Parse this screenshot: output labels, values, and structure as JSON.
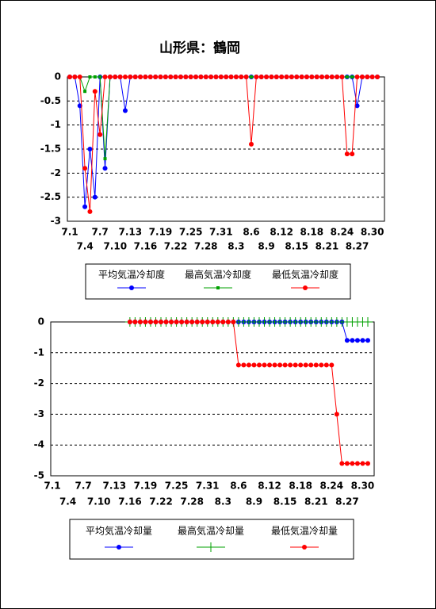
{
  "chart_data": [
    {
      "type": "line",
      "title": "山形県：鶴岡",
      "categories": [
        "7.1",
        null,
        null,
        "7.4",
        null,
        null,
        "7.7",
        null,
        null,
        "7.10",
        null,
        null,
        "7.13",
        null,
        null,
        "7.16",
        null,
        null,
        "7.19",
        null,
        null,
        "7.22",
        null,
        null,
        "7.25",
        null,
        null,
        "7.28",
        null,
        null,
        "7.31",
        null,
        null,
        "8.3",
        null,
        null,
        "8.6",
        null,
        null,
        "8.9",
        null,
        null,
        "8.12",
        null,
        null,
        "8.15",
        null,
        null,
        "8.18",
        null,
        null,
        "8.21",
        null,
        null,
        "8.24",
        null,
        null,
        "8.27",
        null,
        null,
        "8.30",
        null
      ],
      "series": [
        {
          "name": "平均気温冷却度",
          "color": "#0000ff",
          "marker": "circle",
          "values": [
            0,
            0,
            -0.6,
            -2.7,
            -1.5,
            -2.5,
            0,
            -1.9,
            0,
            0,
            0,
            -0.7,
            0,
            0,
            0,
            0,
            0,
            0,
            0,
            0,
            0,
            0,
            0,
            0,
            0,
            0,
            0,
            0,
            0,
            0,
            0,
            0,
            0,
            0,
            0,
            0,
            0,
            0,
            0,
            0,
            0,
            0,
            0,
            0,
            0,
            0,
            0,
            0,
            0,
            0,
            0,
            0,
            0,
            0,
            0,
            0,
            0,
            -0.6,
            0,
            0,
            0,
            0
          ]
        },
        {
          "name": "最高気温冷却度",
          "color": "#00a000",
          "marker": "square",
          "values": [
            0,
            0,
            0,
            -0.3,
            0,
            0,
            0,
            -1.7,
            0,
            0,
            0,
            0,
            0,
            0,
            0,
            0,
            0,
            0,
            0,
            0,
            0,
            0,
            0,
            0,
            0,
            0,
            0,
            0,
            0,
            0,
            0,
            0,
            0,
            0,
            0,
            0,
            0,
            0,
            0,
            0,
            0,
            0,
            0,
            0,
            0,
            0,
            0,
            0,
            0,
            0,
            0,
            0,
            0,
            0,
            0,
            0,
            0,
            0,
            0,
            0,
            0,
            0
          ]
        },
        {
          "name": "最低気温冷却度",
          "color": "#ff0000",
          "marker": "circle",
          "values": [
            0,
            0,
            0,
            -1.9,
            -2.8,
            -0.3,
            -1.2,
            0,
            0,
            0,
            0,
            0,
            0,
            0,
            0,
            0,
            0,
            0,
            0,
            0,
            0,
            0,
            0,
            0,
            0,
            0,
            0,
            0,
            0,
            0,
            0,
            0,
            0,
            0,
            0,
            0,
            -1.4,
            0,
            0,
            0,
            0,
            0,
            0,
            0,
            0,
            0,
            0,
            0,
            0,
            0,
            0,
            0,
            0,
            0,
            0,
            -1.6,
            -1.6,
            0,
            0,
            0,
            0,
            0
          ]
        }
      ],
      "ylim": [
        -3,
        0
      ],
      "yticks": [
        0,
        -0.5,
        -1,
        -1.5,
        -2,
        -2.5,
        -3
      ],
      "grid": true
    },
    {
      "type": "line",
      "categories": [
        "7.1",
        null,
        null,
        "7.4",
        null,
        null,
        "7.7",
        null,
        null,
        "7.10",
        null,
        null,
        "7.13",
        null,
        null,
        "7.16",
        null,
        null,
        "7.19",
        null,
        null,
        "7.22",
        null,
        null,
        "7.25",
        null,
        null,
        "7.28",
        null,
        null,
        "7.31",
        null,
        null,
        "8.3",
        null,
        null,
        "8.6",
        null,
        null,
        "8.9",
        null,
        null,
        "8.12",
        null,
        null,
        "8.15",
        null,
        null,
        "8.18",
        null,
        null,
        "8.21",
        null,
        null,
        "8.24",
        null,
        null,
        "8.27",
        null,
        null,
        "8.30",
        null
      ],
      "series": [
        {
          "name": "平均気温冷却量",
          "color": "#0000ff",
          "marker": "circle",
          "values": [
            null,
            null,
            null,
            null,
            null,
            null,
            null,
            null,
            null,
            null,
            null,
            null,
            null,
            null,
            null,
            0,
            0,
            0,
            0,
            0,
            0,
            0,
            0,
            0,
            0,
            0,
            0,
            0,
            0,
            0,
            0,
            0,
            0,
            0,
            0,
            0,
            0,
            0,
            0,
            0,
            0,
            0,
            0,
            0,
            0,
            0,
            0,
            0,
            0,
            0,
            0,
            0,
            0,
            0,
            0,
            0,
            0,
            -0.6,
            -0.6,
            -0.6,
            -0.6,
            -0.6
          ]
        },
        {
          "name": "最高気温冷却量",
          "color": "#00a000",
          "marker": "plus",
          "values": [
            null,
            null,
            null,
            null,
            null,
            null,
            null,
            null,
            null,
            null,
            null,
            null,
            null,
            null,
            null,
            0,
            0,
            0,
            0,
            0,
            0,
            0,
            0,
            0,
            0,
            0,
            0,
            0,
            0,
            0,
            0,
            0,
            0,
            0,
            0,
            0,
            0,
            0,
            0,
            0,
            0,
            0,
            0,
            0,
            0,
            0,
            0,
            0,
            0,
            0,
            0,
            0,
            0,
            0,
            0,
            0,
            0,
            0,
            0,
            0,
            0,
            0
          ]
        },
        {
          "name": "最低気温冷却量",
          "color": "#ff0000",
          "marker": "circle",
          "values": [
            null,
            null,
            null,
            null,
            null,
            null,
            null,
            null,
            null,
            null,
            null,
            null,
            null,
            null,
            null,
            0,
            0,
            0,
            0,
            0,
            0,
            0,
            0,
            0,
            0,
            0,
            0,
            0,
            0,
            0,
            0,
            0,
            0,
            0,
            0,
            0,
            -1.4,
            -1.4,
            -1.4,
            -1.4,
            -1.4,
            -1.4,
            -1.4,
            -1.4,
            -1.4,
            -1.4,
            -1.4,
            -1.4,
            -1.4,
            -1.4,
            -1.4,
            -1.4,
            -1.4,
            -1.4,
            -1.4,
            -3,
            -4.6,
            -4.6,
            -4.6,
            -4.6,
            -4.6,
            -4.6
          ]
        }
      ],
      "ylim": [
        -5,
        0
      ],
      "yticks": [
        0,
        -1,
        -2,
        -3,
        -4,
        -5
      ],
      "grid": true
    }
  ]
}
